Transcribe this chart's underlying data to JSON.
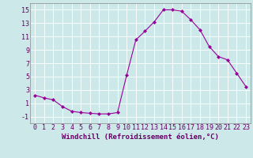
{
  "x": [
    0,
    1,
    2,
    3,
    4,
    5,
    6,
    7,
    8,
    9,
    10,
    11,
    12,
    13,
    14,
    15,
    16,
    17,
    18,
    19,
    20,
    21,
    22,
    23
  ],
  "y": [
    2.2,
    1.8,
    1.5,
    0.5,
    -0.2,
    -0.4,
    -0.5,
    -0.6,
    -0.6,
    -0.4,
    5.2,
    10.5,
    11.8,
    13.2,
    15.0,
    15.0,
    14.8,
    13.5,
    12.0,
    9.5,
    8.0,
    7.5,
    5.5,
    3.5
  ],
  "line_color": "#990099",
  "marker": "D",
  "marker_size": 2,
  "bg_color": "#cce8e8",
  "grid_color": "#ffffff",
  "xlabel": "Windchill (Refroidissement éolien,°C)",
  "xlabel_color": "#660066",
  "tick_color": "#660066",
  "spine_color": "#888888",
  "xlim": [
    -0.5,
    23.5
  ],
  "ylim": [
    -2,
    16
  ],
  "yticks": [
    -1,
    1,
    3,
    5,
    7,
    9,
    11,
    13,
    15
  ],
  "xticks": [
    0,
    1,
    2,
    3,
    4,
    5,
    6,
    7,
    8,
    9,
    10,
    11,
    12,
    13,
    14,
    15,
    16,
    17,
    18,
    19,
    20,
    21,
    22,
    23
  ],
  "xtick_labels": [
    "0",
    "1",
    "2",
    "3",
    "4",
    "5",
    "6",
    "7",
    "8",
    "9",
    "10",
    "11",
    "12",
    "13",
    "14",
    "15",
    "16",
    "17",
    "18",
    "19",
    "20",
    "21",
    "22",
    "23"
  ],
  "ytick_labels": [
    "-1",
    "1",
    "3",
    "5",
    "7",
    "9",
    "11",
    "13",
    "15"
  ],
  "font_size": 6,
  "label_font_size": 6.5
}
